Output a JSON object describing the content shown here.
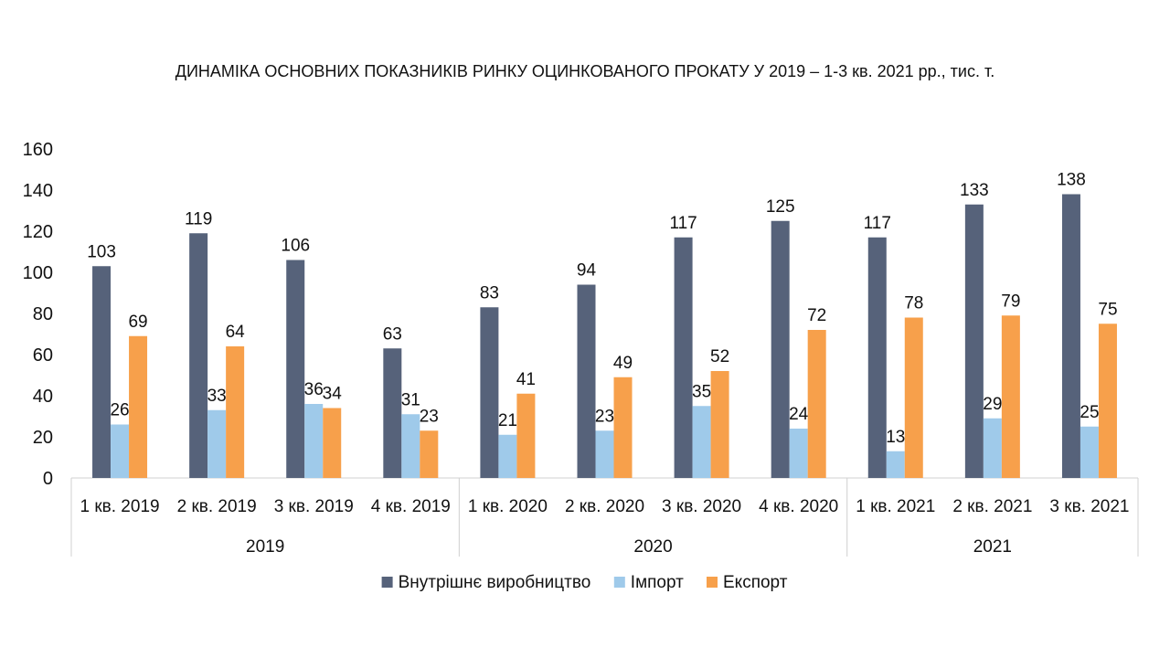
{
  "chart_data": {
    "type": "bar",
    "title": "ДИНАМІКА ОСНОВНИХ ПОКАЗНИКІВ РИНКУ ОЦИНКОВАНОГО ПРОКАТУ У 2019 – 1-3 кв. 2021 рр., тис. т.",
    "xlabel": "",
    "ylabel": "",
    "ylim": [
      0,
      160
    ],
    "yticks": [
      0,
      20,
      40,
      60,
      80,
      100,
      120,
      140,
      160
    ],
    "categories": [
      "1 кв. 2019",
      "2 кв. 2019",
      "3 кв. 2019",
      "4 кв. 2019",
      "1 кв. 2020",
      "2 кв. 2020",
      "3 кв. 2020",
      "4 кв. 2020",
      "1 кв. 2021",
      "2 кв. 2021",
      "3 кв. 2021"
    ],
    "groups": [
      {
        "label": "2019",
        "count": 4
      },
      {
        "label": "2020",
        "count": 4
      },
      {
        "label": "2021",
        "count": 3
      }
    ],
    "series": [
      {
        "name": "Внутрішнє виробництво",
        "color": "#56627a",
        "values": [
          103,
          119,
          106,
          63,
          83,
          94,
          117,
          125,
          117,
          133,
          138
        ]
      },
      {
        "name": "Імпорт",
        "color": "#9fcaea",
        "values": [
          26,
          33,
          36,
          31,
          21,
          23,
          35,
          24,
          13,
          29,
          25
        ]
      },
      {
        "name": "Експорт",
        "color": "#f7a04b",
        "values": [
          69,
          64,
          34,
          23,
          41,
          49,
          52,
          72,
          78,
          79,
          75
        ]
      }
    ],
    "grid": false,
    "legend_position": "bottom"
  }
}
